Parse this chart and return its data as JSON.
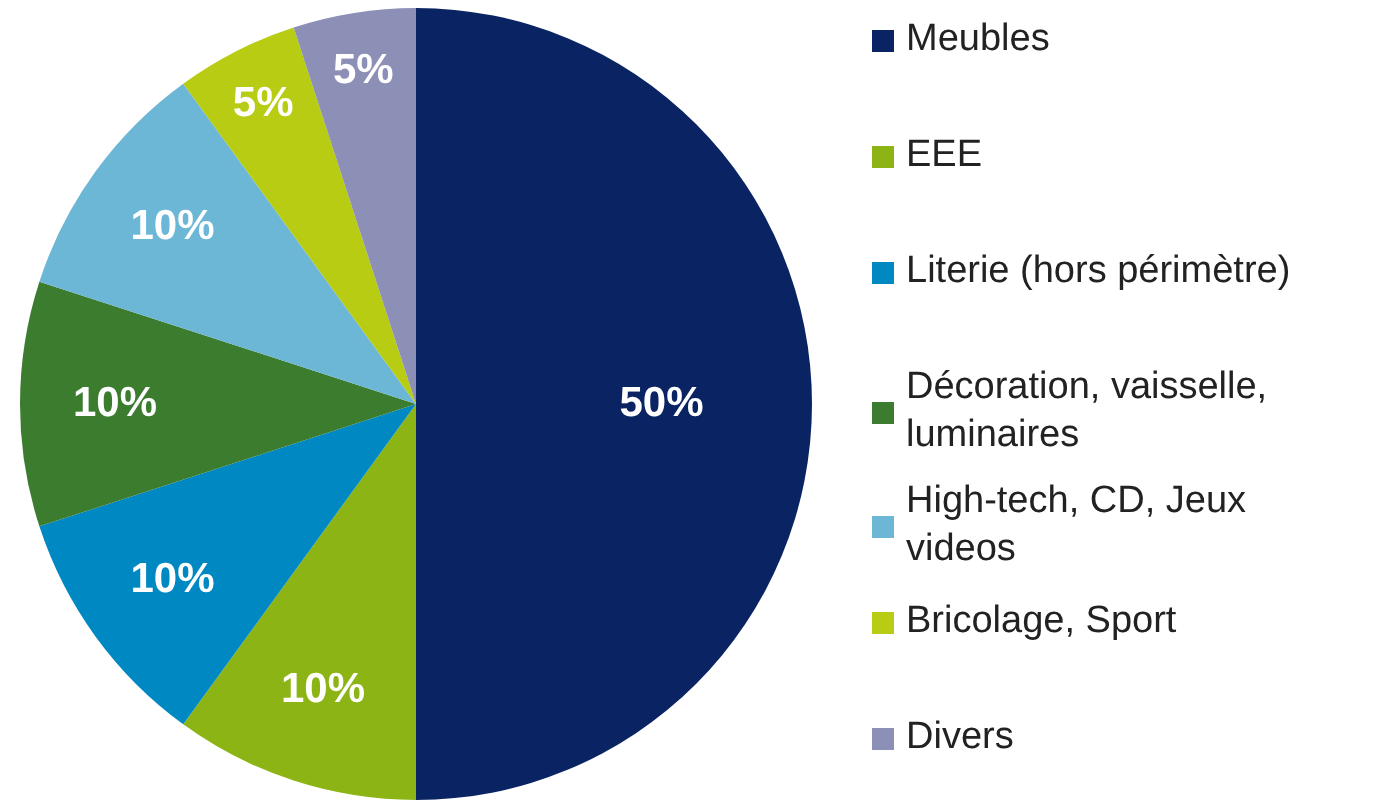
{
  "chart_data": {
    "type": "pie",
    "categories": [
      "Meubles",
      "EEE",
      "Literie (hors périmètre)",
      "Décoration, vaisselle, luminaires",
      "High-tech, CD, Jeux videos",
      "Bricolage, Sport",
      "Divers"
    ],
    "values": [
      50,
      10,
      10,
      10,
      10,
      5,
      5
    ],
    "value_labels": [
      "50%",
      "10%",
      "10%",
      "10%",
      "10%",
      "5%",
      "5%"
    ],
    "colors": [
      "#0a2463",
      "#8cb414",
      "#0088c2",
      "#3b7c2f",
      "#6cb6d6",
      "#b7cc12",
      "#8c8fb6"
    ],
    "legend": "right"
  }
}
